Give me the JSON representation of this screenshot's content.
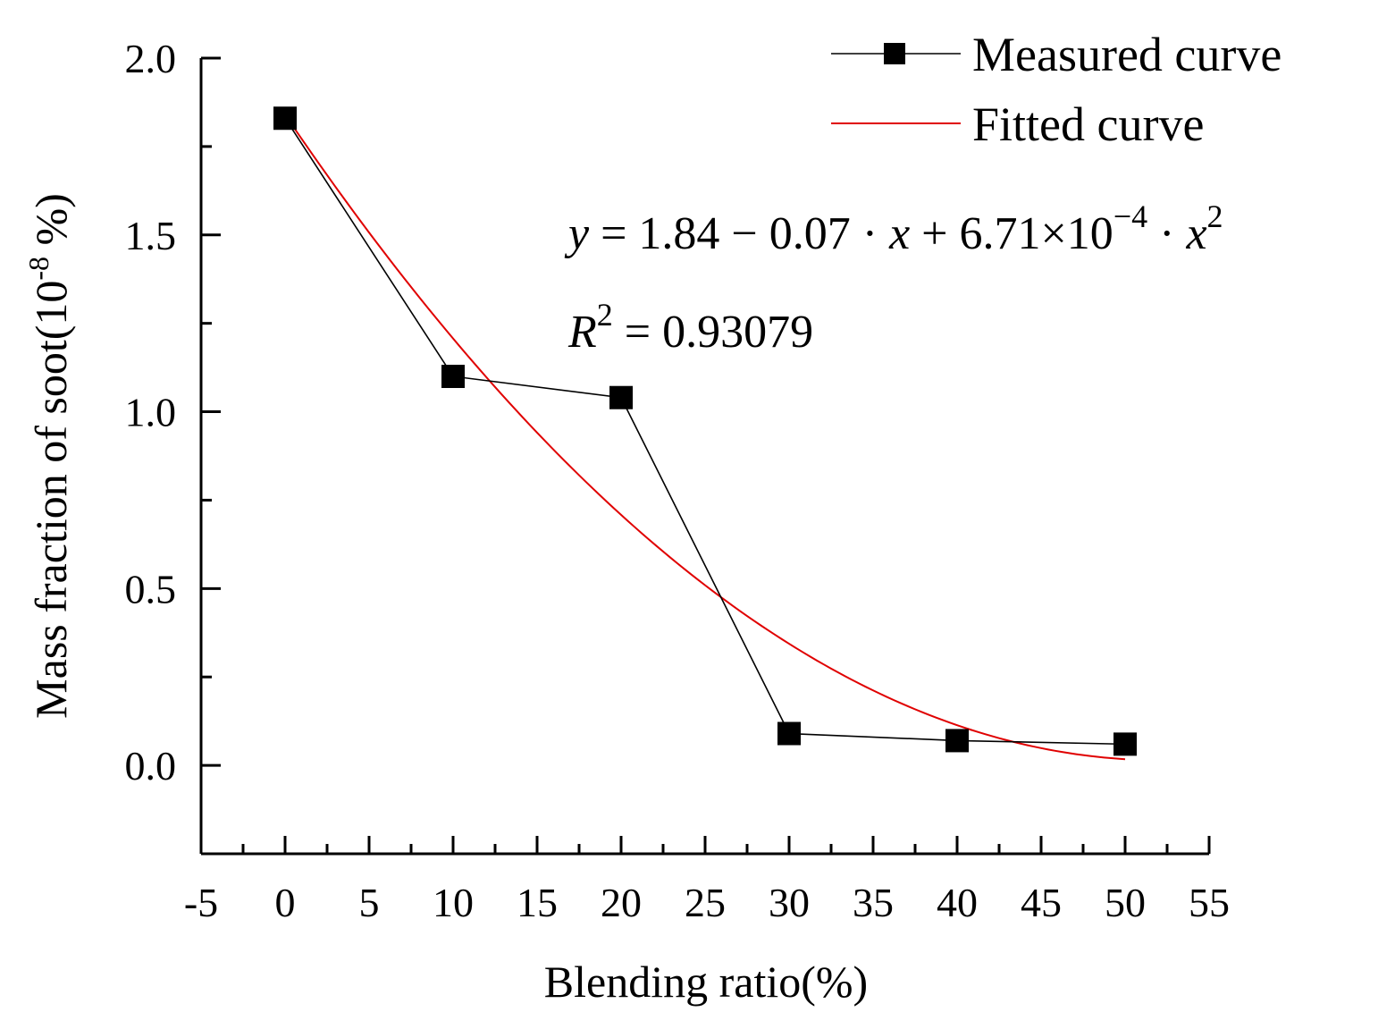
{
  "chart_data": {
    "type": "line",
    "title": "",
    "xlabel": "Blending ratio(%)",
    "ylabel": "Mass fraction of soot(10",
    "ylabel_exponent": "-8",
    "ylabel_suffix": " %)",
    "xlim": [
      -5,
      55
    ],
    "ylim": [
      -0.25,
      2.0
    ],
    "x_ticks": [
      -5,
      0,
      5,
      10,
      15,
      20,
      25,
      30,
      35,
      40,
      45,
      50,
      55
    ],
    "x_tick_labels": [
      "-5",
      "0",
      "5",
      "10",
      "15",
      "20",
      "25",
      "30",
      "35",
      "40",
      "45",
      "50",
      "55"
    ],
    "y_ticks": [
      0.0,
      0.5,
      1.0,
      1.5,
      2.0
    ],
    "y_tick_labels": [
      "0.0",
      "0.5",
      "1.0",
      "1.5",
      "2.0"
    ],
    "grid": false,
    "legend_position": "top-right",
    "series": [
      {
        "name": "Measured curve",
        "color": "#000000",
        "marker": "square",
        "x": [
          0,
          10,
          20,
          30,
          40,
          50
        ],
        "y": [
          1.83,
          1.1,
          1.04,
          0.09,
          0.07,
          0.06
        ]
      },
      {
        "name": "Fitted curve",
        "color": "#e00000",
        "marker": "none",
        "coefficients": [
          1.84,
          -0.07,
          0.000671
        ],
        "x_range": [
          0,
          50
        ]
      }
    ],
    "annotations": {
      "equation": {
        "y": "y",
        "eq1": " = 1.84 − 0.07 · ",
        "x": "x",
        "eq2": " + 6.71×10",
        "exp": "−4",
        "dot": " · ",
        "x2": "x",
        "sq": "2"
      },
      "r_squared": {
        "R": "R",
        "sq": "2",
        "value": " = 0.93079"
      }
    }
  }
}
